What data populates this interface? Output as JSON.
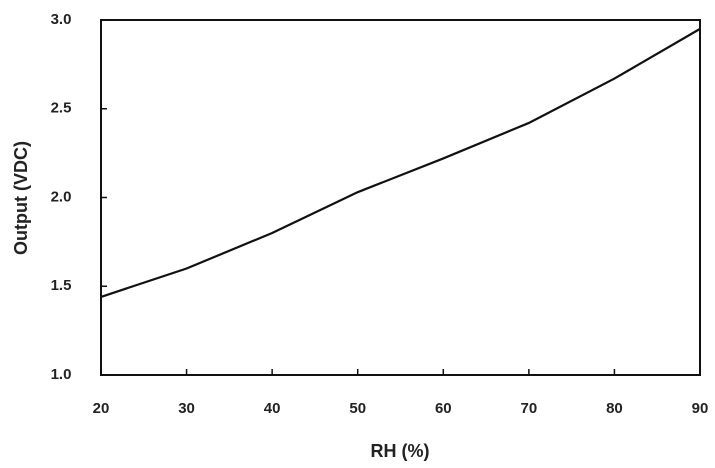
{
  "chart_data": {
    "type": "line",
    "x_label": "RH (%)",
    "y_label": "Output (VDC)",
    "x": [
      20,
      30,
      40,
      50,
      60,
      70,
      80,
      90
    ],
    "values": [
      1.44,
      1.6,
      1.8,
      2.03,
      2.22,
      2.42,
      2.67,
      2.95
    ],
    "color": "#111111",
    "xlim": [
      20,
      90
    ],
    "xticks": [
      20,
      30,
      40,
      50,
      60,
      70,
      80,
      90
    ],
    "ylim": [
      1,
      3
    ],
    "yticks": [
      {
        "value": 1,
        "label": "1.0"
      },
      1.5,
      {
        "value": 2,
        "label": "2.0"
      },
      2.5,
      {
        "value": 3,
        "label": "3.0"
      }
    ]
  }
}
